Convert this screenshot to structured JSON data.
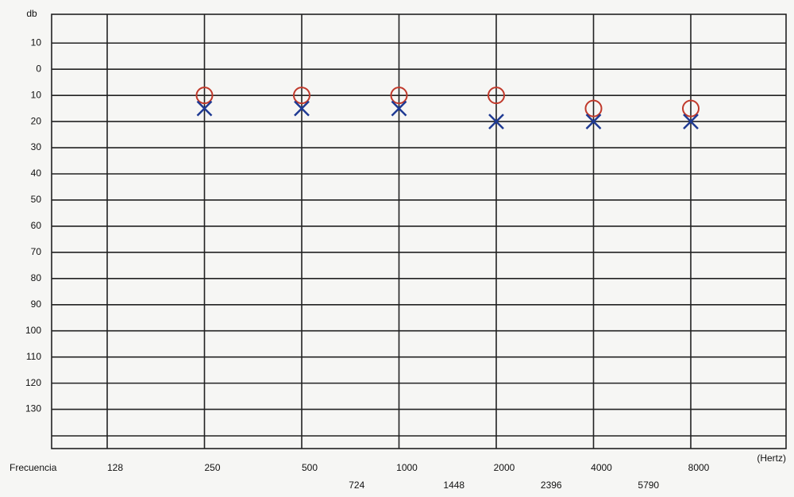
{
  "chart_data": {
    "type": "audiogram",
    "y_label": "db",
    "x_label": "Frecuencia",
    "x_unit": "(Hertz)",
    "categories": [
      "128",
      "250",
      "500",
      "1000",
      "2000",
      "4000",
      "8000"
    ],
    "minor_categories": [
      "724",
      "1448",
      "2396",
      "5790"
    ],
    "ylim": [
      -21,
      145
    ],
    "yticks": [
      {
        "value": -10,
        "label": "10"
      },
      0,
      10,
      20,
      30,
      40,
      50,
      60,
      70,
      80,
      90,
      100,
      110,
      120,
      130
    ],
    "grid": true,
    "series": [
      {
        "color": "#c0392b",
        "marker": "o",
        "values": [
          null,
          10,
          10,
          10,
          10,
          15,
          15
        ]
      },
      {
        "color": "#1f3a93",
        "marker": "x",
        "values": [
          null,
          15,
          15,
          15,
          20,
          20,
          20
        ]
      }
    ]
  }
}
